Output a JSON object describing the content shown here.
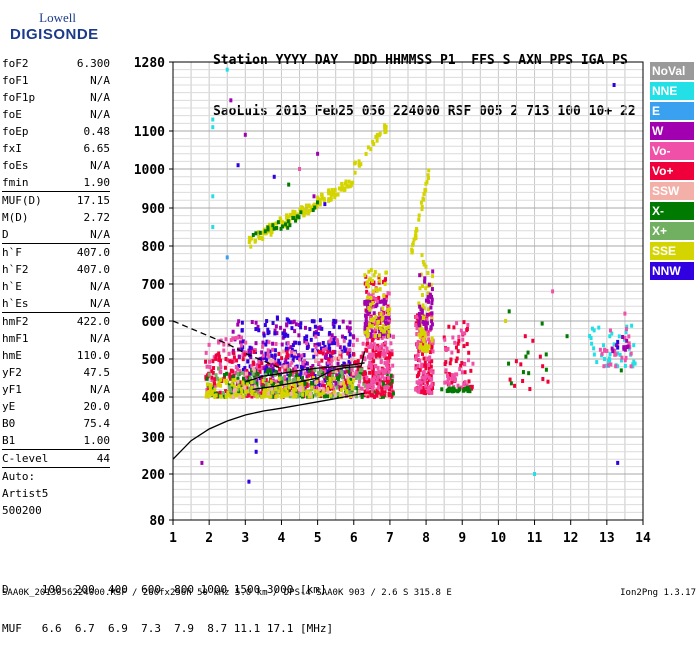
{
  "logo": {
    "line1": "Lowell",
    "line2": "DIGISONDE"
  },
  "header": {
    "line1": "Station YYYY DAY  DDD HHMMSS P1  FFS S AXN PPS IGA PS",
    "line2": "SaoLuis 2013 Feb25 056 224000 RSF 005 2 713 100 10+ 22"
  },
  "params": [
    {
      "name": "foF2",
      "value": "6.300"
    },
    {
      "name": "foF1",
      "value": "N/A"
    },
    {
      "name": "foF1p",
      "value": "N/A"
    },
    {
      "name": "foE",
      "value": "N/A"
    },
    {
      "name": "foEp",
      "value": "0.48"
    },
    {
      "name": "fxI",
      "value": "6.65"
    },
    {
      "name": "foEs",
      "value": "N/A"
    },
    {
      "name": "fmin",
      "value": "1.90"
    },
    {
      "name": "MUF(D)",
      "value": "17.15"
    },
    {
      "name": "M(D)",
      "value": "2.72"
    },
    {
      "name": "D",
      "value": "N/A"
    },
    {
      "name": "h`F",
      "value": "407.0"
    },
    {
      "name": "h`F2",
      "value": "407.0"
    },
    {
      "name": "h`E",
      "value": "N/A"
    },
    {
      "name": "h`Es",
      "value": "N/A"
    },
    {
      "name": "hmF2",
      "value": "422.0"
    },
    {
      "name": "hmF1",
      "value": "N/A"
    },
    {
      "name": "hmE",
      "value": "110.0"
    },
    {
      "name": "yF2",
      "value": "47.5"
    },
    {
      "name": "yF1",
      "value": "N/A"
    },
    {
      "name": "yE",
      "value": "20.0"
    },
    {
      "name": "B0",
      "value": "75.4"
    },
    {
      "name": "B1",
      "value": "1.00"
    },
    {
      "name": "C-level",
      "value": "44"
    }
  ],
  "auto": [
    "Auto:",
    "Artist5",
    "500200"
  ],
  "legend": [
    {
      "label": "NoVal",
      "color": "#9a9a9a"
    },
    {
      "label": "NNE",
      "color": "#22e0e6"
    },
    {
      "label": "E",
      "color": "#3aa0f0"
    },
    {
      "label": "W",
      "color": "#a000b0"
    },
    {
      "label": "Vo-",
      "color": "#f050a8"
    },
    {
      "label": "Vo+",
      "color": "#f0003a"
    },
    {
      "label": "SSW",
      "color": "#f2b0a8"
    },
    {
      "label": "X-",
      "color": "#007a00"
    },
    {
      "label": "X+",
      "color": "#70b060"
    },
    {
      "label": "SSE",
      "color": "#d4d400"
    },
    {
      "label": "NNW",
      "color": "#3000e0"
    }
  ],
  "footer": {
    "d_line": "D     100  200  400  600  800 1000 1500 3000 [km]",
    "muf_line": "MUF   6.6  6.7  6.9  7.3  7.9  8.7 11.1 17.1 [MHz]",
    "file_line": "SAA0K_2013056224000.RSF / 260fx256h 50 kHz 5.0 km / DPS-4 SAA0K 903 / 2.6 S 315.8 E",
    "version": "Ion2Png 1.3.17"
  },
  "chart_data": {
    "type": "scatter",
    "x_ticks": [
      1,
      2,
      3,
      4,
      5,
      6,
      7,
      8,
      9,
      10,
      11,
      12,
      13,
      14
    ],
    "y_ticks": [
      80,
      200,
      300,
      400,
      500,
      600,
      700,
      800,
      900,
      1000,
      1100,
      1280
    ],
    "xlim": [
      1,
      14
    ],
    "ylim": [
      80,
      1280
    ],
    "grid": true,
    "legend_position": "right",
    "curves": [
      {
        "style": "solid",
        "x": [
          1.0,
          1.5,
          2.0,
          2.5,
          3.0,
          3.5,
          4.0,
          4.5,
          5.0,
          5.5,
          6.0,
          6.3
        ],
        "y": [
          240,
          290,
          320,
          340,
          355,
          365,
          372,
          380,
          388,
          396,
          405,
          410
        ]
      },
      {
        "style": "dashed",
        "x": [
          1.0,
          1.5,
          2.0,
          2.5,
          3.0,
          3.5,
          4.0
        ],
        "y": [
          600,
          580,
          560,
          540,
          515,
          495,
          475
        ]
      },
      {
        "style": "solid",
        "x": [
          3.0,
          3.5,
          4.0,
          4.5,
          5.0,
          5.5,
          6.0,
          6.3
        ],
        "y": [
          440,
          455,
          462,
          470,
          476,
          480,
          485,
          490
        ]
      },
      {
        "style": "solid",
        "x": [
          3.2,
          3.8,
          4.5,
          5.0,
          5.4,
          5.8,
          6.2,
          6.3
        ],
        "y": [
          420,
          428,
          440,
          450,
          470,
          478,
          480,
          520
        ]
      }
    ],
    "echo_regions": [
      {
        "name": "W",
        "x": [
          2.6,
          6.0
        ],
        "y": [
          420,
          600
        ],
        "color": "#a000b0",
        "n": 220
      },
      {
        "name": "NNW",
        "x": [
          2.8,
          6.0
        ],
        "y": [
          430,
          610
        ],
        "color": "#3000e0",
        "n": 200
      },
      {
        "name": "Vo-",
        "x": [
          1.9,
          7.1
        ],
        "y": [
          400,
          560
        ],
        "color": "#f050a8",
        "n": 260
      },
      {
        "name": "Vo+",
        "x": [
          1.9,
          7.1
        ],
        "y": [
          400,
          520
        ],
        "color": "#f0003a",
        "n": 220
      },
      {
        "name": "X-",
        "x": [
          1.9,
          7.1
        ],
        "y": [
          400,
          470
        ],
        "color": "#007a00",
        "n": 160
      },
      {
        "name": "X+",
        "x": [
          2.0,
          6.5
        ],
        "y": [
          400,
          480
        ],
        "color": "#70b060",
        "n": 90
      },
      {
        "name": "SSE",
        "x": [
          1.9,
          6.0
        ],
        "y": [
          400,
          450
        ],
        "color": "#d4d400",
        "n": 160
      },
      {
        "name": "SSW",
        "x": [
          2.5,
          7.0
        ],
        "y": [
          400,
          520
        ],
        "color": "#f2b0a8",
        "n": 60
      },
      {
        "name": "Vo+",
        "x": [
          6.3,
          7.0
        ],
        "y": [
          400,
          720
        ],
        "color": "#f0003a",
        "n": 120
      },
      {
        "name": "Vo-",
        "x": [
          6.3,
          7.0
        ],
        "y": [
          420,
          680
        ],
        "color": "#f050a8",
        "n": 110
      },
      {
        "name": "W",
        "x": [
          6.3,
          7.0
        ],
        "y": [
          560,
          660
        ],
        "color": "#a000b0",
        "n": 70
      },
      {
        "name": "SSE",
        "x": [
          6.3,
          7.0
        ],
        "y": [
          560,
          740
        ],
        "color": "#d4d400",
        "n": 60
      },
      {
        "name": "Vo+",
        "x": [
          7.7,
          8.2
        ],
        "y": [
          410,
          620
        ],
        "color": "#f0003a",
        "n": 100
      },
      {
        "name": "Vo-",
        "x": [
          7.7,
          8.2
        ],
        "y": [
          410,
          620
        ],
        "color": "#f050a8",
        "n": 80
      },
      {
        "name": "SSE",
        "x": [
          7.8,
          8.2
        ],
        "y": [
          520,
          780
        ],
        "color": "#d4d400",
        "n": 60
      },
      {
        "name": "W",
        "x": [
          7.8,
          8.2
        ],
        "y": [
          580,
          740
        ],
        "color": "#a000b0",
        "n": 40
      },
      {
        "name": "Vo+",
        "x": [
          8.5,
          9.3
        ],
        "y": [
          420,
          600
        ],
        "color": "#f0003a",
        "n": 45
      },
      {
        "name": "Vo-",
        "x": [
          8.5,
          9.3
        ],
        "y": [
          420,
          600
        ],
        "color": "#f050a8",
        "n": 40
      },
      {
        "name": "X-",
        "x": [
          8.4,
          9.3
        ],
        "y": [
          415,
          425
        ],
        "color": "#007a00",
        "n": 30
      },
      {
        "name": "NNE",
        "x": [
          12.5,
          13.8
        ],
        "y": [
          480,
          590
        ],
        "color": "#22e0e6",
        "n": 40
      },
      {
        "name": "Vo-",
        "x": [
          12.8,
          13.7
        ],
        "y": [
          480,
          580
        ],
        "color": "#f050a8",
        "n": 25
      },
      {
        "name": "W",
        "x": [
          13.0,
          13.6
        ],
        "y": [
          520,
          560
        ],
        "color": "#a000b0",
        "n": 10
      },
      {
        "name": "Vo+",
        "x": [
          10.2,
          11.4
        ],
        "y": [
          420,
          600
        ],
        "color": "#f0003a",
        "n": 12
      },
      {
        "name": "X-",
        "x": [
          10.2,
          11.4
        ],
        "y": [
          420,
          640
        ],
        "color": "#007a00",
        "n": 10
      }
    ],
    "echo_streaks": [
      {
        "name": "SSE",
        "x": [
          3.1,
          6.0
        ],
        "y": [
          810,
          970
        ],
        "color": "#d4d400",
        "n": 140
      },
      {
        "name": "X-",
        "x": [
          3.2,
          5.0
        ],
        "y": [
          815,
          900
        ],
        "color": "#007a00",
        "n": 25
      },
      {
        "name": "SSE",
        "x": [
          6.0,
          6.9
        ],
        "y": [
          1000,
          1110
        ],
        "color": "#d4d400",
        "n": 25
      },
      {
        "name": "SSE",
        "x": [
          7.6,
          8.1
        ],
        "y": [
          780,
          1000
        ],
        "color": "#d4d400",
        "n": 30
      }
    ],
    "scattered_points": [
      {
        "x": 2.1,
        "y": 1110,
        "color": "#22e0e6"
      },
      {
        "x": 2.1,
        "y": 1130,
        "color": "#22e0e6"
      },
      {
        "x": 2.5,
        "y": 1260,
        "color": "#22e0e6"
      },
      {
        "x": 2.6,
        "y": 1180,
        "color": "#a000b0"
      },
      {
        "x": 2.8,
        "y": 1010,
        "color": "#3000e0"
      },
      {
        "x": 3.0,
        "y": 1090,
        "color": "#a000b0"
      },
      {
        "x": 2.1,
        "y": 930,
        "color": "#22e0e6"
      },
      {
        "x": 2.1,
        "y": 850,
        "color": "#22e0e6"
      },
      {
        "x": 2.5,
        "y": 770,
        "color": "#3aa0f0"
      },
      {
        "x": 1.8,
        "y": 230,
        "color": "#a000b0"
      },
      {
        "x": 3.3,
        "y": 260,
        "color": "#3000e0"
      },
      {
        "x": 3.3,
        "y": 290,
        "color": "#3000e0"
      },
      {
        "x": 3.1,
        "y": 180,
        "color": "#3000e0"
      },
      {
        "x": 11.0,
        "y": 200,
        "color": "#22e0e6"
      },
      {
        "x": 13.2,
        "y": 1220,
        "color": "#3000e0"
      },
      {
        "x": 13.3,
        "y": 230,
        "color": "#3000e0"
      },
      {
        "x": 13.5,
        "y": 620,
        "color": "#f050a8"
      },
      {
        "x": 13.4,
        "y": 470,
        "color": "#007a00"
      },
      {
        "x": 13.3,
        "y": 530,
        "color": "#3000e0"
      },
      {
        "x": 13.3,
        "y": 545,
        "color": "#3000e0"
      },
      {
        "x": 5.0,
        "y": 1040,
        "color": "#a000b0"
      },
      {
        "x": 4.5,
        "y": 1000,
        "color": "#f050a8"
      },
      {
        "x": 3.8,
        "y": 980,
        "color": "#3000e0"
      },
      {
        "x": 4.2,
        "y": 960,
        "color": "#007a00"
      },
      {
        "x": 4.9,
        "y": 930,
        "color": "#a000b0"
      },
      {
        "x": 5.2,
        "y": 910,
        "color": "#3000e0"
      },
      {
        "x": 10.2,
        "y": 600,
        "color": "#d4d400"
      },
      {
        "x": 11.5,
        "y": 680,
        "color": "#f050a8"
      },
      {
        "x": 11.9,
        "y": 560,
        "color": "#007a00"
      },
      {
        "x": 12.6,
        "y": 580,
        "color": "#22e0e6"
      }
    ]
  }
}
